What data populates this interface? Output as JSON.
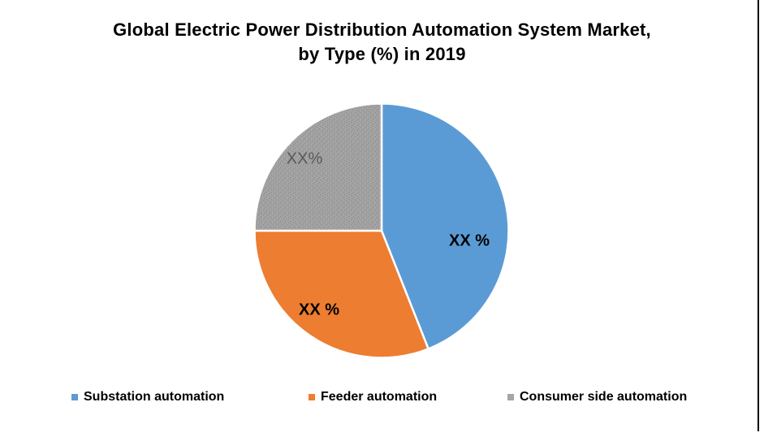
{
  "page": {
    "background": "#ffffff",
    "right_border_color": "#000000"
  },
  "header": {
    "title_lines": [
      "Global Electric Power Distribution Automation System Market,",
      "by Type (%) in 2019"
    ]
  },
  "chart_data": {
    "type": "pie",
    "title": "Global Electric Power Distribution Automation System Market, by Type (%) in 2019",
    "unit": "%",
    "start_angle_deg": 0,
    "direction": "clockwise",
    "slice_border_color": "#ffffff",
    "legend_position": "bottom",
    "segments": [
      {
        "name": "Substation automation",
        "label": "XX %",
        "value_pct_estimated": 44,
        "color": "#5B9BD5",
        "fill_style": "solid",
        "label_color": "#000000"
      },
      {
        "name": "Feeder automation",
        "label": "XX %",
        "value_pct_estimated": 31,
        "color": "#ED7D31",
        "fill_style": "solid",
        "label_color": "#000000"
      },
      {
        "name": "Consumer side automation",
        "label": "XX%",
        "value_pct_estimated": 25,
        "color": "#A5A5A5",
        "fill_style": "dots",
        "label_color": "#595959"
      }
    ]
  },
  "legend": {
    "items": [
      {
        "label": "Substation automation",
        "color": "#5B9BD5"
      },
      {
        "label": "Feeder automation",
        "color": "#ED7D31"
      },
      {
        "label": "Consumer side automation",
        "color": "#A5A5A5"
      }
    ]
  }
}
